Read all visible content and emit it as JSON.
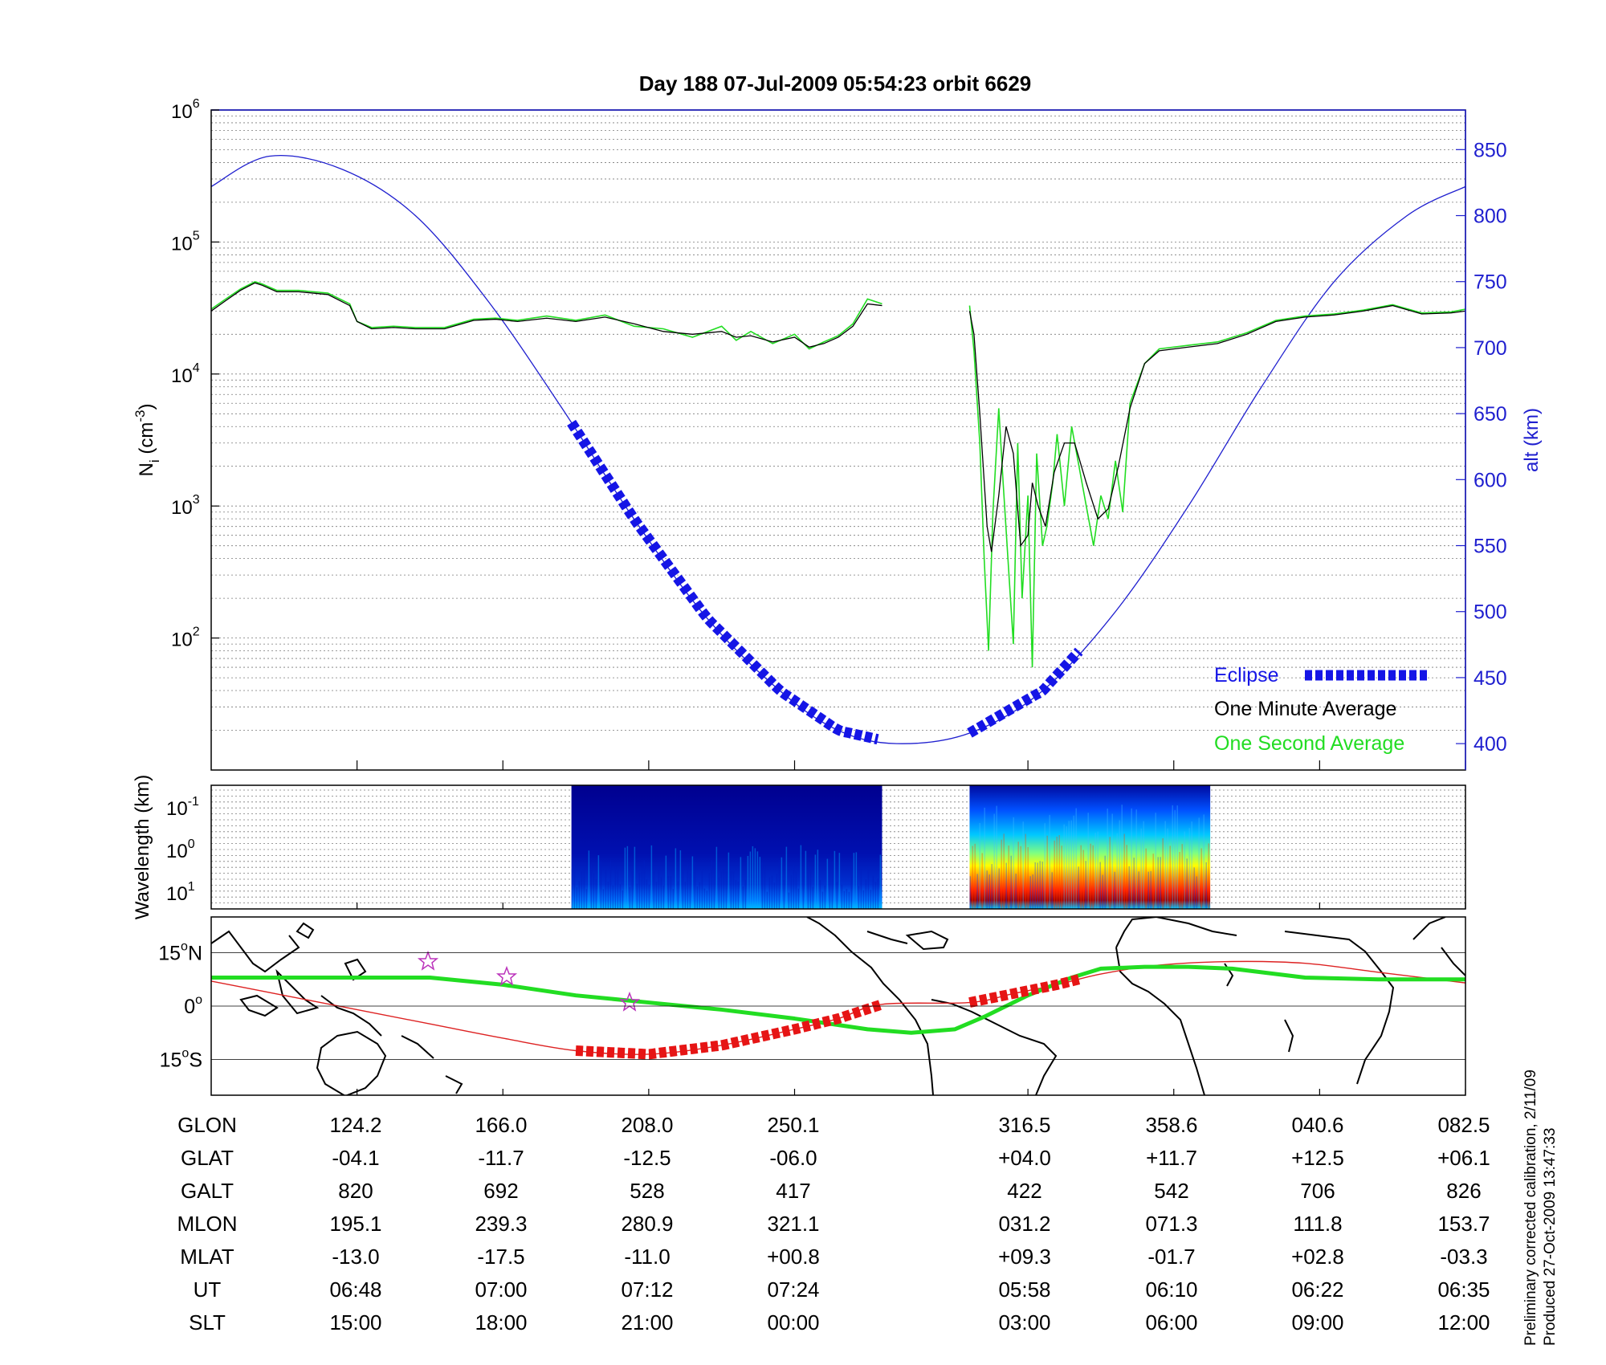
{
  "title": "Day 188  07-Jul-2009 05:54:23    orbit 6629",
  "chart_data": [
    {
      "type": "line",
      "panel": "ion-density",
      "ylabel": "N_i (cm^-3)",
      "yscale": "log",
      "ylim": [
        10,
        1000000
      ],
      "yticks": [
        {
          "base": "10",
          "exp": "2"
        },
        {
          "base": "10",
          "exp": "3"
        },
        {
          "base": "10",
          "exp": "4"
        },
        {
          "base": "10",
          "exp": "5"
        },
        {
          "base": "10",
          "exp": "6"
        }
      ],
      "y2label": "alt (km)",
      "y2lim": [
        380,
        880
      ],
      "y2ticks": [
        "400",
        "450",
        "500",
        "550",
        "600",
        "650",
        "700",
        "750",
        "800",
        "850"
      ],
      "xlim": [
        0,
        8.6
      ],
      "grid": true,
      "legend_position": "bottom-right",
      "legend": [
        {
          "label": "Eclipse",
          "color": "#1515e6"
        },
        {
          "label": "One Minute Average",
          "color": "#000000"
        },
        {
          "label": "One Second Average",
          "color": "#22dd22"
        }
      ],
      "altitude_x": [
        0,
        0.4,
        0.9,
        1.4,
        1.9,
        2.4,
        2.9,
        3.4,
        3.9,
        4.3,
        4.7,
        5.2,
        5.7,
        6.2,
        6.7,
        7.2,
        7.7,
        8.2,
        8.6
      ],
      "altitude_km": [
        822,
        845,
        835,
        800,
        735,
        655,
        570,
        495,
        440,
        410,
        400,
        408,
        440,
        500,
        580,
        670,
        750,
        800,
        822
      ],
      "eclipse_segments": [
        [
          2.47,
          4.6
        ],
        [
          5.2,
          5.97
        ]
      ],
      "minute_avg_x": [
        0,
        0.1,
        0.2,
        0.3,
        0.35,
        0.45,
        0.6,
        0.8,
        0.95,
        1.0,
        1.1,
        1.25,
        1.4,
        1.6,
        1.8,
        1.95,
        2.1,
        2.3,
        2.5,
        2.7,
        2.9,
        3.1,
        3.3,
        3.5,
        3.6,
        3.7,
        3.85,
        4.0,
        4.1,
        4.2,
        4.3,
        4.4,
        4.5,
        4.6
      ],
      "minute_avg": [
        30000,
        36000,
        43000,
        49000,
        47000,
        42000,
        42000,
        40000,
        33000,
        25000,
        22000,
        22500,
        22000,
        22000,
        25500,
        26000,
        25000,
        26500,
        25000,
        27000,
        24000,
        21000,
        20000,
        21000,
        19000,
        19500,
        17500,
        19000,
        16000,
        17000,
        19000,
        23000,
        34000,
        33000
      ],
      "minute_avg_x2": [
        5.2,
        5.23,
        5.27,
        5.32,
        5.35,
        5.4,
        5.45,
        5.5,
        5.55,
        5.6,
        5.63,
        5.67,
        5.72,
        5.78,
        5.85,
        5.92,
        6.0,
        6.08,
        6.15,
        6.22,
        6.3,
        6.4,
        6.5,
        6.7,
        6.9,
        7.1,
        7.3,
        7.5,
        7.7,
        7.9,
        8.1,
        8.3,
        8.5,
        8.6
      ],
      "minute_avg2": [
        30000,
        20000,
        5000,
        700,
        450,
        1200,
        4000,
        2500,
        500,
        600,
        1500,
        1000,
        700,
        1800,
        3000,
        3000,
        1500,
        800,
        950,
        2000,
        5500,
        12000,
        15000,
        16000,
        17000,
        20000,
        25000,
        27000,
        28000,
        30000,
        33000,
        28500,
        29000,
        30000
      ],
      "second_avg_x": [
        0,
        0.1,
        0.2,
        0.3,
        0.35,
        0.45,
        0.6,
        0.8,
        0.95,
        1.0,
        1.1,
        1.25,
        1.4,
        1.6,
        1.8,
        1.95,
        2.1,
        2.3,
        2.5,
        2.7,
        2.9,
        3.1,
        3.3,
        3.5,
        3.6,
        3.7,
        3.85,
        4.0,
        4.1,
        4.2,
        4.3,
        4.4,
        4.5,
        4.6
      ],
      "second_avg": [
        31000,
        37000,
        44000,
        50000,
        48000,
        43000,
        43000,
        41000,
        34000,
        25000,
        22500,
        23000,
        22500,
        22500,
        26000,
        26500,
        25500,
        27500,
        25500,
        28000,
        23000,
        22000,
        19000,
        23000,
        18000,
        21000,
        17000,
        20000,
        15500,
        17500,
        19500,
        24000,
        37000,
        34000
      ],
      "second_avg_x2": [
        5.2,
        5.23,
        5.27,
        5.3,
        5.33,
        5.36,
        5.4,
        5.43,
        5.47,
        5.5,
        5.53,
        5.56,
        5.6,
        5.63,
        5.66,
        5.7,
        5.73,
        5.77,
        5.8,
        5.85,
        5.9,
        5.95,
        6.0,
        6.05,
        6.1,
        6.15,
        6.2,
        6.25,
        6.3,
        6.4,
        6.5,
        6.7,
        6.9,
        7.1,
        7.3,
        7.5,
        7.7,
        7.9,
        8.1,
        8.3,
        8.5,
        8.6
      ],
      "second_avg2": [
        33000,
        15000,
        3000,
        400,
        80,
        900,
        5500,
        1500,
        300,
        90,
        3000,
        200,
        1200,
        60,
        2500,
        500,
        700,
        1500,
        3500,
        1000,
        4000,
        2000,
        1000,
        500,
        1200,
        800,
        2200,
        900,
        6000,
        12000,
        15500,
        16500,
        17500,
        20500,
        25500,
        27500,
        28500,
        30500,
        33500,
        29000,
        29500,
        31000
      ]
    },
    {
      "type": "heatmap",
      "panel": "wavelength-spectrogram",
      "ylabel": "Wavelength (km)",
      "yticks": [
        {
          "base": "10",
          "exp": "-1"
        },
        {
          "base": "10",
          "exp": "0"
        },
        {
          "base": "10",
          "exp": "1"
        }
      ],
      "active_intervals": [
        [
          2.47,
          4.6
        ],
        [
          5.2,
          6.85
        ]
      ],
      "colormap": "jet"
    },
    {
      "type": "line",
      "panel": "ground-track-map",
      "yticks": [
        {
          "deg": "15",
          "unit": "o",
          "hemi": "N"
        },
        {
          "deg": "0",
          "unit": "o",
          "hemi": ""
        },
        {
          "deg": "15",
          "unit": "o",
          "hemi": "S"
        }
      ],
      "ylim": [
        -25,
        25
      ],
      "magnetic_equator_color": "#22dd22",
      "orbit_track_color": "#dd2222",
      "eclipse_color": "#e61515",
      "green_x": [
        0,
        0.5,
        1.0,
        1.5,
        2.0,
        2.5,
        3.0,
        3.5,
        4.0,
        4.5,
        4.8,
        5.1,
        5.3,
        5.6,
        5.9,
        6.1,
        6.4,
        6.7,
        7.0,
        7.5,
        8.0,
        8.6
      ],
      "green_lat": [
        8,
        8,
        8,
        8,
        6,
        3,
        1,
        -1,
        -3.5,
        -6.5,
        -7.5,
        -6.5,
        -3,
        3,
        8,
        10.5,
        11,
        11,
        10.5,
        8,
        7.5,
        7.5
      ],
      "red_x": [
        0,
        0.5,
        1.0,
        1.5,
        2.0,
        2.5,
        3.0,
        3.5,
        4.0,
        4.3,
        4.6,
        5.2,
        5.5,
        5.8,
        6.1,
        6.5,
        7.0,
        7.5,
        8.0,
        8.6
      ],
      "red_lat": [
        7,
        3,
        -1,
        -5,
        -9,
        -12.5,
        -13.5,
        -11,
        -6.5,
        -3.5,
        0.5,
        1,
        3.5,
        6,
        9,
        11.5,
        12.5,
        12,
        9.5,
        6.5
      ],
      "eclipse_track": [
        [
          2.5,
          4.6
        ],
        [
          5.2,
          5.97
        ]
      ]
    }
  ],
  "table": {
    "rows": [
      {
        "label": "GLON",
        "values": [
          "124.2",
          "166.0",
          "208.0",
          "250.1",
          "316.5",
          "358.6",
          "040.6",
          "082.5"
        ]
      },
      {
        "label": "GLAT",
        "values": [
          "-04.1",
          "-11.7",
          "-12.5",
          "-06.0",
          "+04.0",
          "+11.7",
          "+12.5",
          "+06.1"
        ]
      },
      {
        "label": "GALT",
        "values": [
          "820",
          "692",
          "528",
          "417",
          "422",
          "542",
          "706",
          "826"
        ]
      },
      {
        "label": "MLON",
        "values": [
          "195.1",
          "239.3",
          "280.9",
          "321.1",
          "031.2",
          "071.3",
          "111.8",
          "153.7"
        ]
      },
      {
        "label": "MLAT",
        "values": [
          "-13.0",
          "-17.5",
          "-11.0",
          "+00.8",
          "+09.3",
          "-01.7",
          "+02.8",
          "-03.3"
        ]
      },
      {
        "label": "UT",
        "values": [
          "06:48",
          "07:00",
          "07:12",
          "07:24",
          "05:58",
          "06:10",
          "06:22",
          "06:35"
        ]
      },
      {
        "label": "SLT",
        "values": [
          "15:00",
          "18:00",
          "21:00",
          "00:00",
          "03:00",
          "06:00",
          "09:00",
          "12:00"
        ]
      }
    ]
  },
  "footer": {
    "line1": "Preliminary corrected calibration, 2/11/09",
    "line2": "Produced 27-Oct-2009 13:47:33"
  }
}
